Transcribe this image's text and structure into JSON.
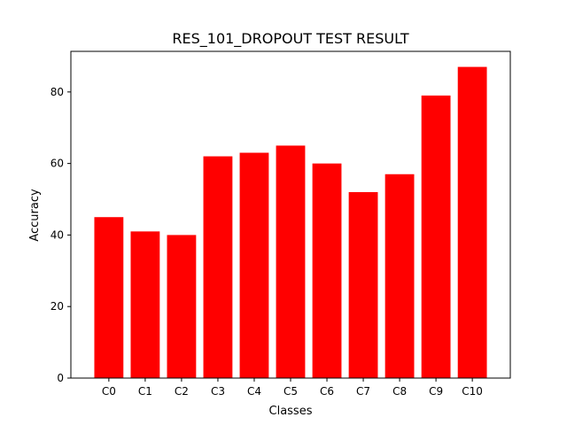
{
  "chart_data": {
    "type": "bar",
    "title": "RES_101_DROPOUT TEST RESULT",
    "xlabel": "Classes",
    "ylabel": "Accuracy",
    "categories": [
      "C0",
      "C1",
      "C2",
      "C3",
      "C4",
      "C5",
      "C6",
      "C7",
      "C8",
      "C9",
      "C10"
    ],
    "values": [
      45,
      41,
      40,
      62,
      63,
      65,
      60,
      52,
      57,
      79,
      87
    ],
    "ylim": [
      0,
      91.35
    ],
    "yticks": [
      0,
      20,
      40,
      60,
      80
    ],
    "bar_color": "#ff0000",
    "grid": false,
    "legend": "none"
  }
}
